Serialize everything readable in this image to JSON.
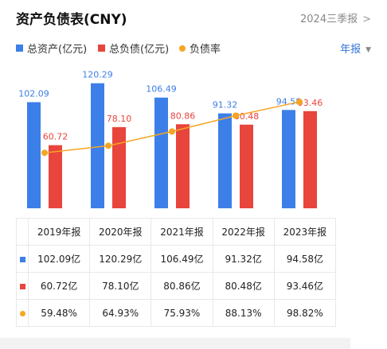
{
  "header": {
    "title": "资产负债表(CNY)",
    "period_label": "2024三季报",
    "period_arrow": ">"
  },
  "legend": {
    "items": [
      {
        "label": "总资产(亿元)",
        "color": "#3d7fe8",
        "shape": "square"
      },
      {
        "label": "总负债(亿元)",
        "color": "#e8453c",
        "shape": "square"
      },
      {
        "label": "负债率",
        "color": "#f5a623",
        "shape": "dot"
      }
    ],
    "report_type": "年报",
    "caret": "▼"
  },
  "chart_data": {
    "type": "bar",
    "categories": [
      "2019年报",
      "2020年报",
      "2021年报",
      "2022年报",
      "2023年报"
    ],
    "series": [
      {
        "name": "总资产(亿元)",
        "values": [
          102.09,
          120.29,
          106.49,
          91.32,
          94.58
        ],
        "color": "#3d7fe8",
        "labels": [
          "102.09",
          "120.29",
          "106.49",
          "91.32",
          "94.58"
        ]
      },
      {
        "name": "总负债(亿元)",
        "values": [
          60.72,
          78.1,
          80.86,
          80.48,
          93.46
        ],
        "color": "#e8453c",
        "labels": [
          "60.72",
          "78.10",
          "80.86",
          "80.48",
          "93.46"
        ]
      }
    ],
    "line_series": {
      "name": "负债率",
      "values": [
        59.48,
        64.93,
        75.93,
        88.13,
        98.82
      ],
      "color": "#f5a623"
    },
    "ylim": [
      0,
      130
    ],
    "line_ylim": [
      40,
      105
    ],
    "grid": false,
    "legend_position": "top-left"
  },
  "table": {
    "headers": [
      "2019年报",
      "2020年报",
      "2021年报",
      "2022年报",
      "2023年报"
    ],
    "rows": [
      {
        "color": "#3d7fe8",
        "shape": "square",
        "cells": [
          "102.09亿",
          "120.29亿",
          "106.49亿",
          "91.32亿",
          "94.58亿"
        ]
      },
      {
        "color": "#e8453c",
        "shape": "square",
        "cells": [
          "60.72亿",
          "78.10亿",
          "80.86亿",
          "80.48亿",
          "93.46亿"
        ]
      },
      {
        "color": "#f5a623",
        "shape": "dot",
        "cells": [
          "59.48%",
          "64.93%",
          "75.93%",
          "88.13%",
          "98.82%"
        ]
      }
    ]
  }
}
